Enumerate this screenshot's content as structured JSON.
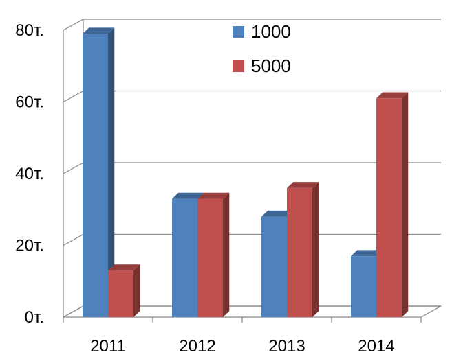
{
  "chart_data": {
    "type": "bar",
    "categories": [
      "2011",
      "2012",
      "2013",
      "2014"
    ],
    "series": [
      {
        "name": "1000",
        "values": [
          79,
          33,
          28,
          17
        ],
        "color": "#4F81BD"
      },
      {
        "name": "5000",
        "values": [
          13,
          33,
          36,
          61
        ],
        "color": "#C0504D"
      }
    ],
    "y_ticks": [
      {
        "value": 0,
        "label": "0т."
      },
      {
        "value": 20,
        "label": "20т."
      },
      {
        "value": 40,
        "label": "40т."
      },
      {
        "value": 60,
        "label": "60т."
      },
      {
        "value": 80,
        "label": "80т."
      }
    ],
    "ylim": [
      0,
      80
    ],
    "grid": true,
    "legend_position": "top-right",
    "style": "3d-clustered-column"
  }
}
